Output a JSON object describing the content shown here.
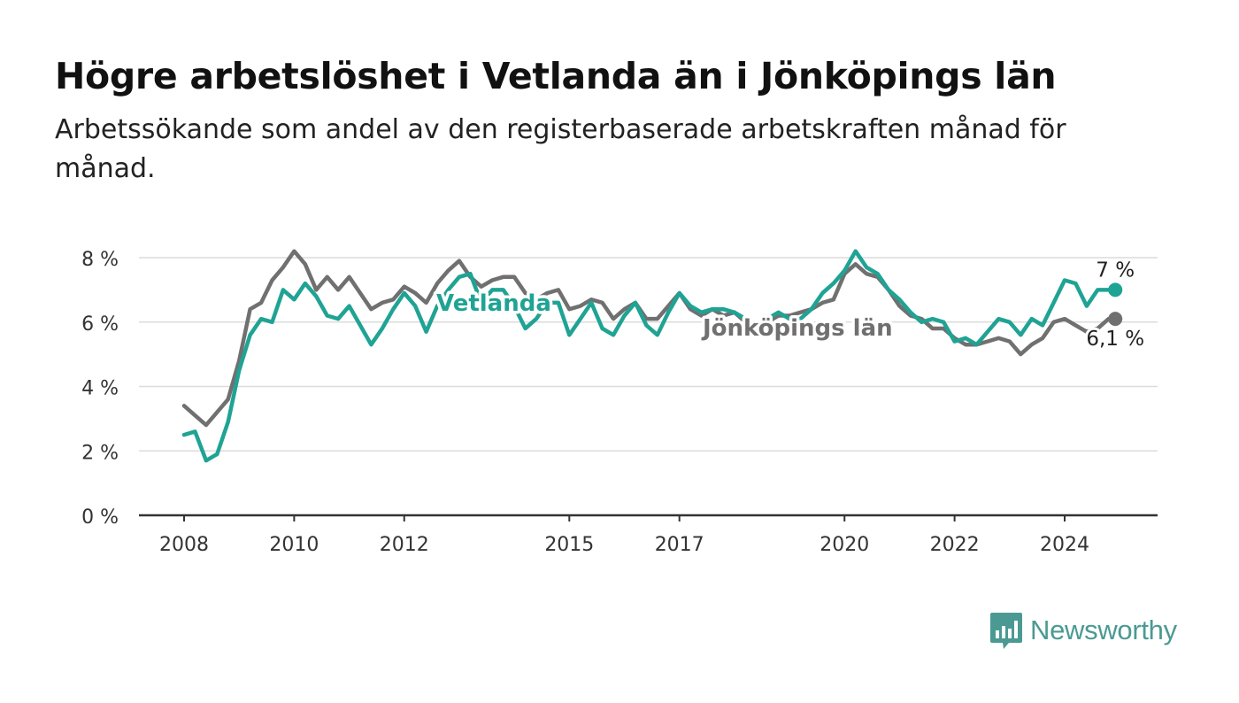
{
  "title": "Högre arbetslöshet i Vetlanda än i Jönköpings län",
  "subtitle": "Arbetssökande som andel av den registerbaserade arbetskraften månad för månad.",
  "brand": {
    "name": "Newsworthy",
    "icon": "bar-chart-logo-icon",
    "color": "#4a9a93"
  },
  "chart_data": {
    "type": "line",
    "xlabel": "",
    "ylabel": "",
    "ylim": [
      0,
      8
    ],
    "y_ticks": [
      0,
      2,
      4,
      6,
      8
    ],
    "y_tick_labels": [
      "0 %",
      "2 %",
      "4 %",
      "6 %",
      "8 %"
    ],
    "x_ticks": [
      2008,
      2010,
      2012,
      2015,
      2017,
      2020,
      2022,
      2024
    ],
    "x_tick_labels": [
      "2008",
      "2010",
      "2012",
      "2015",
      "2017",
      "2020",
      "2022",
      "2024"
    ],
    "grid": true,
    "series": [
      {
        "name": "Vetlanda",
        "color": "#1fa394",
        "end_label": "7 %",
        "points": [
          [
            2008.0,
            2.5
          ],
          [
            2008.2,
            2.6
          ],
          [
            2008.4,
            1.7
          ],
          [
            2008.6,
            1.9
          ],
          [
            2008.8,
            2.9
          ],
          [
            2009.0,
            4.5
          ],
          [
            2009.2,
            5.6
          ],
          [
            2009.4,
            6.1
          ],
          [
            2009.6,
            6.0
          ],
          [
            2009.8,
            7.0
          ],
          [
            2010.0,
            6.7
          ],
          [
            2010.2,
            7.2
          ],
          [
            2010.4,
            6.8
          ],
          [
            2010.6,
            6.2
          ],
          [
            2010.8,
            6.1
          ],
          [
            2011.0,
            6.5
          ],
          [
            2011.2,
            5.9
          ],
          [
            2011.4,
            5.3
          ],
          [
            2011.6,
            5.8
          ],
          [
            2011.8,
            6.4
          ],
          [
            2012.0,
            6.9
          ],
          [
            2012.2,
            6.5
          ],
          [
            2012.4,
            5.7
          ],
          [
            2012.6,
            6.5
          ],
          [
            2012.8,
            7.0
          ],
          [
            2013.0,
            7.4
          ],
          [
            2013.2,
            7.5
          ],
          [
            2013.4,
            6.6
          ],
          [
            2013.6,
            7.0
          ],
          [
            2013.8,
            7.0
          ],
          [
            2014.0,
            6.5
          ],
          [
            2014.2,
            5.8
          ],
          [
            2014.4,
            6.1
          ],
          [
            2014.6,
            6.6
          ],
          [
            2014.8,
            6.6
          ],
          [
            2015.0,
            5.6
          ],
          [
            2015.2,
            6.1
          ],
          [
            2015.4,
            6.6
          ],
          [
            2015.6,
            5.8
          ],
          [
            2015.8,
            5.6
          ],
          [
            2016.0,
            6.2
          ],
          [
            2016.2,
            6.6
          ],
          [
            2016.4,
            5.9
          ],
          [
            2016.6,
            5.6
          ],
          [
            2016.8,
            6.3
          ],
          [
            2017.0,
            6.9
          ],
          [
            2017.2,
            6.5
          ],
          [
            2017.4,
            6.3
          ],
          [
            2017.6,
            6.4
          ],
          [
            2017.8,
            6.4
          ],
          [
            2018.0,
            6.3
          ],
          [
            2018.2,
            6.1
          ],
          [
            2018.4,
            5.9
          ],
          [
            2018.6,
            6.1
          ],
          [
            2018.8,
            6.3
          ],
          [
            2019.0,
            6.1
          ],
          [
            2019.2,
            6.1
          ],
          [
            2019.4,
            6.4
          ],
          [
            2019.6,
            6.9
          ],
          [
            2019.8,
            7.2
          ],
          [
            2020.0,
            7.6
          ],
          [
            2020.2,
            8.2
          ],
          [
            2020.4,
            7.7
          ],
          [
            2020.6,
            7.5
          ],
          [
            2020.8,
            7.0
          ],
          [
            2021.0,
            6.7
          ],
          [
            2021.2,
            6.3
          ],
          [
            2021.4,
            6.0
          ],
          [
            2021.6,
            6.1
          ],
          [
            2021.8,
            6.0
          ],
          [
            2022.0,
            5.4
          ],
          [
            2022.2,
            5.5
          ],
          [
            2022.4,
            5.3
          ],
          [
            2022.6,
            5.7
          ],
          [
            2022.8,
            6.1
          ],
          [
            2023.0,
            6.0
          ],
          [
            2023.2,
            5.6
          ],
          [
            2023.4,
            6.1
          ],
          [
            2023.6,
            5.9
          ],
          [
            2023.8,
            6.6
          ],
          [
            2024.0,
            7.3
          ],
          [
            2024.2,
            7.2
          ],
          [
            2024.4,
            6.5
          ],
          [
            2024.6,
            7.0
          ],
          [
            2024.8,
            7.0
          ],
          [
            2024.92,
            7.0
          ]
        ]
      },
      {
        "name": "Jönköpings län",
        "color": "#707070",
        "end_label": "6,1 %",
        "points": [
          [
            2008.0,
            3.4
          ],
          [
            2008.2,
            3.1
          ],
          [
            2008.4,
            2.8
          ],
          [
            2008.6,
            3.2
          ],
          [
            2008.8,
            3.6
          ],
          [
            2009.0,
            4.8
          ],
          [
            2009.2,
            6.4
          ],
          [
            2009.4,
            6.6
          ],
          [
            2009.6,
            7.3
          ],
          [
            2009.8,
            7.7
          ],
          [
            2010.0,
            8.2
          ],
          [
            2010.2,
            7.8
          ],
          [
            2010.4,
            7.0
          ],
          [
            2010.6,
            7.4
          ],
          [
            2010.8,
            7.0
          ],
          [
            2011.0,
            7.4
          ],
          [
            2011.2,
            6.9
          ],
          [
            2011.4,
            6.4
          ],
          [
            2011.6,
            6.6
          ],
          [
            2011.8,
            6.7
          ],
          [
            2012.0,
            7.1
          ],
          [
            2012.2,
            6.9
          ],
          [
            2012.4,
            6.6
          ],
          [
            2012.6,
            7.2
          ],
          [
            2012.8,
            7.6
          ],
          [
            2013.0,
            7.9
          ],
          [
            2013.2,
            7.4
          ],
          [
            2013.4,
            7.1
          ],
          [
            2013.6,
            7.3
          ],
          [
            2013.8,
            7.4
          ],
          [
            2014.0,
            7.4
          ],
          [
            2014.2,
            6.9
          ],
          [
            2014.4,
            6.7
          ],
          [
            2014.6,
            6.9
          ],
          [
            2014.8,
            7.0
          ],
          [
            2015.0,
            6.4
          ],
          [
            2015.2,
            6.5
          ],
          [
            2015.4,
            6.7
          ],
          [
            2015.6,
            6.6
          ],
          [
            2015.8,
            6.1
          ],
          [
            2016.0,
            6.4
          ],
          [
            2016.2,
            6.6
          ],
          [
            2016.4,
            6.1
          ],
          [
            2016.6,
            6.1
          ],
          [
            2016.8,
            6.5
          ],
          [
            2017.0,
            6.9
          ],
          [
            2017.2,
            6.4
          ],
          [
            2017.4,
            6.2
          ],
          [
            2017.6,
            6.4
          ],
          [
            2017.8,
            6.2
          ],
          [
            2018.0,
            6.3
          ],
          [
            2018.2,
            6.0
          ],
          [
            2018.4,
            5.9
          ],
          [
            2018.6,
            6.0
          ],
          [
            2018.8,
            6.2
          ],
          [
            2019.0,
            6.2
          ],
          [
            2019.2,
            6.3
          ],
          [
            2019.4,
            6.4
          ],
          [
            2019.6,
            6.6
          ],
          [
            2019.8,
            6.7
          ],
          [
            2020.0,
            7.5
          ],
          [
            2020.2,
            7.8
          ],
          [
            2020.4,
            7.5
          ],
          [
            2020.6,
            7.4
          ],
          [
            2020.8,
            7.0
          ],
          [
            2021.0,
            6.5
          ],
          [
            2021.2,
            6.2
          ],
          [
            2021.4,
            6.1
          ],
          [
            2021.6,
            5.8
          ],
          [
            2021.8,
            5.8
          ],
          [
            2022.0,
            5.5
          ],
          [
            2022.2,
            5.3
          ],
          [
            2022.4,
            5.3
          ],
          [
            2022.6,
            5.4
          ],
          [
            2022.8,
            5.5
          ],
          [
            2023.0,
            5.4
          ],
          [
            2023.2,
            5.0
          ],
          [
            2023.4,
            5.3
          ],
          [
            2023.6,
            5.5
          ],
          [
            2023.8,
            6.0
          ],
          [
            2024.0,
            6.1
          ],
          [
            2024.2,
            5.9
          ],
          [
            2024.4,
            5.7
          ],
          [
            2024.6,
            5.8
          ],
          [
            2024.8,
            6.1
          ],
          [
            2024.92,
            6.1
          ]
        ]
      }
    ]
  }
}
